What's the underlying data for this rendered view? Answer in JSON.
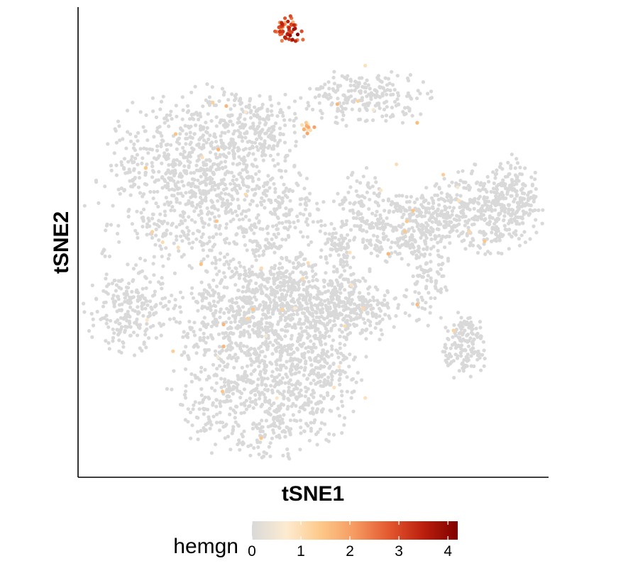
{
  "chart_data": {
    "type": "scatter",
    "title": "",
    "xlabel": "tSNE1",
    "ylabel": "tSNE2",
    "xlim": [
      -45,
      45
    ],
    "ylim": [
      -45,
      45
    ],
    "axis_ticks": false,
    "grid": false,
    "legend": {
      "title": "hemgn",
      "placement": "bottom",
      "type": "colorbar",
      "range": [
        0,
        4.2
      ],
      "ticks": [
        0,
        1,
        2,
        3,
        4
      ],
      "tick_labels": [
        "0",
        "1",
        "2",
        "3",
        "4"
      ],
      "colors": [
        "#d9d9d9",
        "#fdebd1",
        "#fdc98a",
        "#f59a60",
        "#e3582f",
        "#bb1f0d",
        "#7f0000"
      ]
    },
    "point_color_zero": "#d9d9d9",
    "clusters": [
      {
        "x": -22,
        "y": 12,
        "sx": 9,
        "sy": 8,
        "n": 950,
        "expr": 0,
        "rot": 0
      },
      {
        "x": -12,
        "y": 22,
        "sx": 5,
        "sy": 3.5,
        "n": 180,
        "expr": 0,
        "rot": 0
      },
      {
        "x": -5,
        "y": 5,
        "sx": 3,
        "sy": 4,
        "n": 100,
        "expr": 0,
        "rot": 0
      },
      {
        "x": -11,
        "y": -13,
        "sx": 7,
        "sy": 5,
        "n": 600,
        "expr": 0,
        "rot": 0
      },
      {
        "x": -10,
        "y": -29,
        "sx": 8,
        "sy": 6,
        "n": 650,
        "expr": 0,
        "rot": 0
      },
      {
        "x": -1,
        "y": -10,
        "sx": 6,
        "sy": 4,
        "n": 280,
        "expr": 0,
        "rot": 0
      },
      {
        "x": 7,
        "y": -13,
        "sx": 5,
        "sy": 3,
        "n": 250,
        "expr": 0,
        "rot": 0
      },
      {
        "x": 1,
        "y": -24,
        "sx": 4,
        "sy": 4,
        "n": 150,
        "expr": 0,
        "rot": 0
      },
      {
        "x": -35,
        "y": -13,
        "sx": 4,
        "sy": 4,
        "n": 220,
        "expr": 0,
        "rot": 0
      },
      {
        "x": 10,
        "y": 28,
        "sx": 6,
        "sy": 2.5,
        "n": 220,
        "expr": 0,
        "rot": 0
      },
      {
        "x": 10,
        "y": 6,
        "sx": 3,
        "sy": 4,
        "n": 120,
        "expr": 0,
        "rot": 0
      },
      {
        "x": 18,
        "y": 2,
        "sx": 4,
        "sy": 3,
        "n": 200,
        "expr": 0,
        "rot": 0
      },
      {
        "x": 22,
        "y": 6,
        "sx": 3,
        "sy": 2,
        "n": 80,
        "expr": 0,
        "rot": 0
      },
      {
        "x": 33,
        "y": 6,
        "sx": 5,
        "sy": 4,
        "n": 380,
        "expr": 0,
        "rot": 0
      },
      {
        "x": 39,
        "y": 10,
        "sx": 2,
        "sy": 3,
        "n": 90,
        "expr": 0,
        "rot": 0
      },
      {
        "x": 29,
        "y": -20,
        "sx": 2,
        "sy": 3,
        "n": 150,
        "expr": 0,
        "rot": 0
      },
      {
        "x": 22,
        "y": -8,
        "sx": 2,
        "sy": 4,
        "n": 90,
        "expr": 0,
        "rot": 0
      },
      {
        "x": 4,
        "y": 0,
        "sx": 1.5,
        "sy": 1,
        "n": 30,
        "expr": 0,
        "rot": 0
      },
      {
        "x": 6,
        "y": -2,
        "sx": 1,
        "sy": 2,
        "n": 25,
        "expr": 0,
        "rot": 0
      },
      {
        "x": -10,
        "y": -1,
        "sx": 1.5,
        "sy": 0.8,
        "n": 15,
        "expr": 0,
        "rot": 0
      },
      {
        "x": -40,
        "y": -2,
        "sx": 0.6,
        "sy": 0.4,
        "n": 6,
        "expr": 0,
        "rot": 0
      },
      {
        "x": 0,
        "y": 4,
        "sx": 2,
        "sy": 2,
        "n": 12,
        "expr": 0,
        "rot": 0
      },
      {
        "x": -5,
        "y": 41,
        "sx": 1.4,
        "sy": 1.2,
        "n": 50,
        "expr": 2.8,
        "rot": 0
      },
      {
        "x": -1,
        "y": 22,
        "sx": 0.7,
        "sy": 0.6,
        "n": 12,
        "expr": 1.3,
        "rot": 0
      }
    ],
    "isolated_points": [
      {
        "x": -44,
        "y": 7,
        "expr": 0
      },
      {
        "x": -29,
        "y": 0,
        "expr": 1.0
      },
      {
        "x": -31,
        "y": 2,
        "expr": 1.2
      },
      {
        "x": -26,
        "y": -1,
        "expr": 1.0
      },
      {
        "x": 10,
        "y": 34,
        "expr": 0.9
      },
      {
        "x": 20,
        "y": 23,
        "expr": 1.6
      },
      {
        "x": 7,
        "y": -2,
        "expr": 0.9
      },
      {
        "x": 16,
        "y": 15,
        "expr": 1.0
      },
      {
        "x": 13,
        "y": 10,
        "expr": 0.8
      },
      {
        "x": 18,
        "y": 4,
        "expr": 1.4
      },
      {
        "x": 25,
        "y": 13,
        "expr": 1.3
      },
      {
        "x": 30,
        "y": 2,
        "expr": 1.1
      },
      {
        "x": 28,
        "y": 8,
        "expr": 0.9
      },
      {
        "x": 20,
        "y": -12,
        "expr": 1.6
      },
      {
        "x": 27,
        "y": -17,
        "expr": 1.2
      },
      {
        "x": -10,
        "y": -5,
        "expr": 1.0
      },
      {
        "x": -6,
        "y": -13,
        "expr": 1.2
      },
      {
        "x": 5,
        "y": -24,
        "expr": 0.8
      },
      {
        "x": 10,
        "y": -30,
        "expr": 0.9
      },
      {
        "x": -27,
        "y": -21,
        "expr": 1.3
      },
      {
        "x": -32,
        "y": -15,
        "expr": 0.8
      },
      {
        "x": -1,
        "y": -4,
        "expr": 1.0
      },
      {
        "x": 4,
        "y": -28,
        "expr": 0.9
      },
      {
        "x": -7,
        "y": -30,
        "expr": 0.8
      },
      {
        "x": -2,
        "y": -7,
        "expr": 1.1
      },
      {
        "x": -3,
        "y": 40,
        "expr": 4.1
      },
      {
        "x": -4,
        "y": 39,
        "expr": 3.8
      },
      {
        "x": -6,
        "y": 42,
        "expr": 3.5
      },
      {
        "x": -2,
        "y": 39,
        "expr": 2.6
      },
      {
        "x": -5,
        "y": 40,
        "expr": 3.1
      }
    ]
  }
}
